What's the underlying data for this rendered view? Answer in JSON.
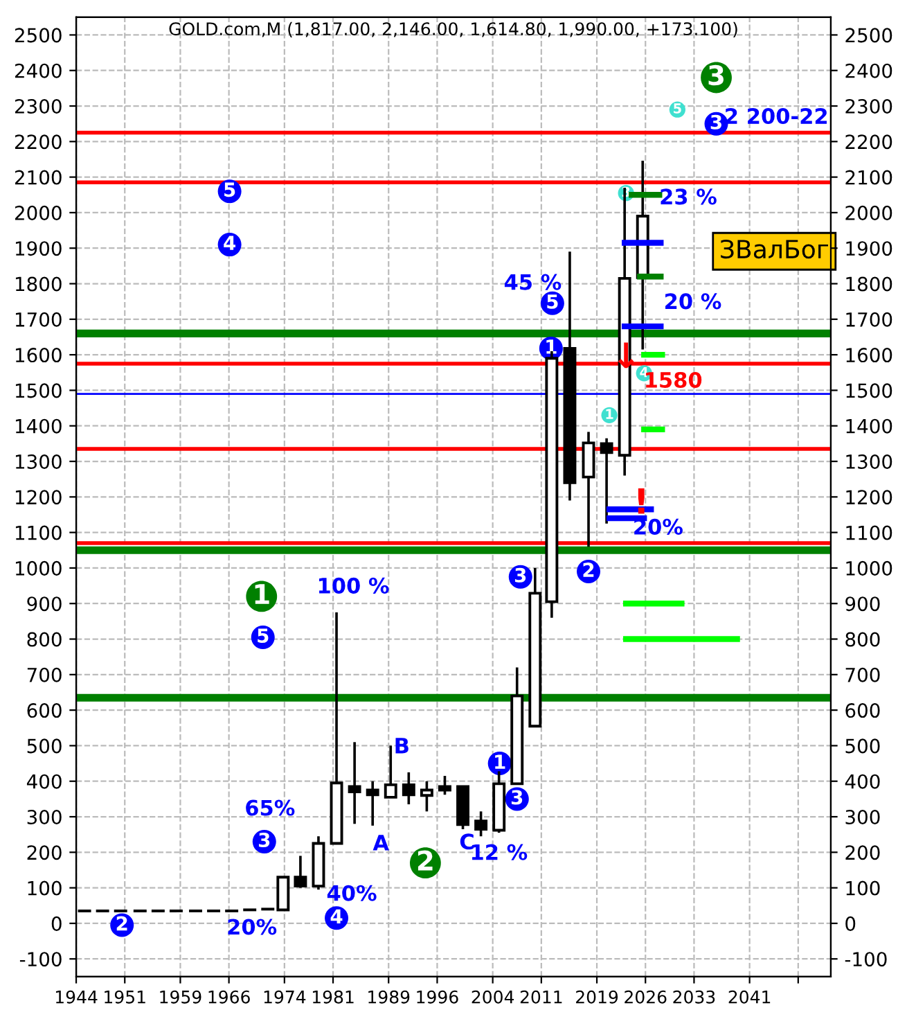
{
  "chart_data": {
    "type": "candlestick",
    "title": "GOLD.com,M (1,817.00, 2,146.00, 1,614.80, 1,990.00, +173.100)",
    "x": [
      1945.2,
      1947.8,
      1950.4,
      1953.2,
      1955.8,
      1958.4,
      1961.2,
      1963.8,
      1966.4,
      1969.0,
      1971.6,
      1973.8,
      1976.3,
      1978.9,
      1981.5,
      1984.1,
      1986.7,
      1989.3,
      1991.9,
      1994.5,
      1997.1,
      1999.7,
      2002.3,
      2004.9,
      2007.5,
      2010.1,
      2012.5,
      2015.1,
      2017.8,
      2020.4,
      2023.0,
      2025.6
    ],
    "ohlc": [
      [
        35,
        35,
        35,
        35
      ],
      [
        35,
        35,
        35,
        35
      ],
      [
        35,
        35,
        35,
        35
      ],
      [
        35,
        35,
        35,
        35
      ],
      [
        35,
        35,
        35,
        35
      ],
      [
        35,
        35,
        35,
        35
      ],
      [
        35,
        35,
        35,
        35
      ],
      [
        35,
        35,
        35,
        35
      ],
      [
        35,
        35,
        35,
        35
      ],
      [
        38,
        38,
        38,
        38
      ],
      [
        40,
        40,
        40,
        40
      ],
      [
        38,
        130,
        38,
        130
      ],
      [
        130,
        190,
        100,
        105
      ],
      [
        105,
        245,
        95,
        225
      ],
      [
        225,
        875,
        225,
        395
      ],
      [
        385,
        510,
        280,
        370
      ],
      [
        375,
        400,
        275,
        362
      ],
      [
        355,
        500,
        355,
        390
      ],
      [
        390,
        425,
        335,
        362
      ],
      [
        360,
        400,
        315,
        375
      ],
      [
        385,
        415,
        362,
        375
      ],
      [
        385,
        385,
        265,
        278
      ],
      [
        288,
        315,
        245,
        265
      ],
      [
        262,
        428,
        255,
        393
      ],
      [
        393,
        720,
        393,
        640
      ],
      [
        555,
        1000,
        555,
        929
      ],
      [
        905,
        1610,
        860,
        1590
      ],
      [
        1618,
        1890,
        1190,
        1240
      ],
      [
        1256,
        1383,
        1060,
        1352
      ],
      [
        1350,
        1365,
        1125,
        1325
      ],
      [
        1317,
        2070,
        1260,
        1815
      ],
      [
        1817,
        2146,
        1615,
        1990
      ]
    ],
    "series": [
      {
        "type": "line",
        "color": "#00ff00",
        "x": [
          2023.2,
          2031.2
        ],
        "values": [
          900,
          900
        ]
      },
      {
        "type": "line",
        "color": "#00ff00",
        "x": [
          2023.2,
          2039.2
        ],
        "values": [
          800,
          800
        ]
      },
      {
        "type": "line",
        "color": "#008000",
        "x": [
          2024.0,
          2028.0
        ],
        "values": [
          2050,
          2050
        ]
      },
      {
        "type": "line",
        "color": "#0000ff",
        "x": [
          2023.0,
          2028.2
        ],
        "values": [
          1915,
          1915
        ]
      },
      {
        "type": "line",
        "color": "#008000",
        "x": [
          2025.2,
          2028.2
        ],
        "values": [
          1820,
          1820
        ]
      },
      {
        "type": "line",
        "color": "#0000ff",
        "x": [
          2023.0,
          2028.2
        ],
        "values": [
          1680,
          1680
        ]
      },
      {
        "type": "line",
        "color": "#00ff00",
        "x": [
          2025.8,
          2028.4
        ],
        "values": [
          1600,
          1600
        ]
      },
      {
        "type": "line",
        "color": "#00ff00",
        "x": [
          2025.8,
          2028.4
        ],
        "values": [
          1390,
          1390
        ]
      },
      {
        "type": "line",
        "color": "#0000ff",
        "x": [
          2020.8,
          2026.8
        ],
        "values": [
          1165,
          1165
        ]
      },
      {
        "type": "line",
        "color": "#0000ff",
        "x": [
          2020.8,
          2025.8
        ],
        "values": [
          1140,
          1140
        ]
      },
      {
        "type": "scatter",
        "marker": "circle",
        "color": "#0000ff",
        "x": [
          2036.2,
          1966.1,
          1966.1,
          2012.6,
          2012.4,
          2017.8,
          2008.0,
          1970.9,
          2005.0,
          2007.5,
          1971.1,
          1981.5,
          1950.6
        ],
        "values": [
          2250,
          2060,
          1910,
          1745,
          1618,
          990,
          975,
          805,
          450,
          350,
          230,
          15,
          -5
        ]
      },
      {
        "type": "scatter",
        "marker": "circle",
        "color": "#008000",
        "x": [
          2036.2,
          1970.7,
          1994.3
        ],
        "values": [
          2380,
          920,
          170
        ]
      },
      {
        "type": "scatter",
        "marker": "circle",
        "color": "#40e0d0",
        "x": [
          2030.6,
          2023.2,
          2025.8,
          2020.8
        ],
        "values": [
          2290,
          2055,
          1548,
          1430
        ]
      }
    ],
    "ref_lines": [
      {
        "axis": "y",
        "value": 2225,
        "color": "#ff0000"
      },
      {
        "axis": "y",
        "value": 2085,
        "color": "#ff0000"
      },
      {
        "axis": "y",
        "value": 1660,
        "color": "#008000"
      },
      {
        "axis": "y",
        "value": 1575,
        "color": "#ff0000"
      },
      {
        "axis": "y",
        "value": 1490,
        "color": "#0000ff"
      },
      {
        "axis": "y",
        "value": 1335,
        "color": "#ff0000"
      },
      {
        "axis": "y",
        "value": 1070,
        "color": "#ff0000"
      },
      {
        "axis": "y",
        "value": 1050,
        "color": "#008000"
      },
      {
        "axis": "y",
        "value": 635,
        "color": "#008000"
      }
    ],
    "annotations": [
      "2 200-22",
      "45 %",
      "23 %",
      "20 %",
      "ЗВалБог",
      "1580",
      "20%",
      "100 %",
      "B",
      "65%",
      "A",
      "C",
      "12 %",
      "40%",
      "20%",
      {
        "text": "3",
        "x": 2036.2,
        "y": 2250
      },
      {
        "text": "5",
        "x": 1966.1,
        "y": 2060
      },
      {
        "text": "4",
        "x": 1966.1,
        "y": 1910
      },
      {
        "text": "5",
        "x": 2012.6,
        "y": 1745
      },
      {
        "text": "1",
        "x": 2012.4,
        "y": 1618
      },
      {
        "text": "2",
        "x": 2017.8,
        "y": 990
      },
      {
        "text": "3",
        "x": 2008.0,
        "y": 975
      },
      {
        "text": "5",
        "x": 1970.9,
        "y": 805
      },
      {
        "text": "1",
        "x": 2005.0,
        "y": 450
      },
      {
        "text": "3",
        "x": 2007.5,
        "y": 350
      },
      {
        "text": "3",
        "x": 1971.1,
        "y": 230
      },
      {
        "text": "4",
        "x": 1981.5,
        "y": 15
      },
      {
        "text": "2",
        "x": 1950.6,
        "y": -5
      },
      {
        "text": "3",
        "x": 2036.2,
        "y": 2380
      },
      {
        "text": "1",
        "x": 1970.7,
        "y": 920
      },
      {
        "text": "2",
        "x": 1994.3,
        "y": 170
      },
      {
        "text": "5",
        "x": 2030.6,
        "y": 2290
      },
      {
        "text": "3",
        "x": 2023.2,
        "y": 2055
      },
      {
        "text": "4",
        "x": 2025.8,
        "y": 1548
      },
      {
        "text": "1",
        "x": 2020.8,
        "y": 1430
      },
      {
        "text": "↓",
        "x": 2023.2,
        "y": 1590
      },
      {
        "text": "!",
        "x": 2025.4,
        "y": 1180
      }
    ],
    "xlim": [
      1944,
      2052.7
    ],
    "xticks": [
      1944,
      1951,
      1959,
      1966,
      1974,
      1981,
      1989,
      1996,
      2004,
      2011,
      2019,
      2026,
      2033,
      2041,
      {
        "value": 2048,
        "label": null
      }
    ],
    "ylim": [
      -150,
      2550
    ],
    "yticks": [
      -100,
      0,
      100,
      200,
      300,
      400,
      500,
      600,
      700,
      800,
      900,
      1000,
      1100,
      1200,
      1300,
      1400,
      1500,
      1600,
      1700,
      1800,
      1900,
      2000,
      2100,
      2200,
      2300,
      2400,
      2500
    ],
    "y2lim": [
      -150,
      2550
    ],
    "y2ticks": [
      -100,
      0,
      100,
      200,
      300,
      400,
      500,
      600,
      700,
      800,
      900,
      1000,
      1100,
      1200,
      1300,
      1400,
      1500,
      1600,
      1700,
      1800,
      1900,
      2000,
      2100,
      2200,
      2300,
      2400,
      2500
    ],
    "grid": true,
    "legend": false
  }
}
